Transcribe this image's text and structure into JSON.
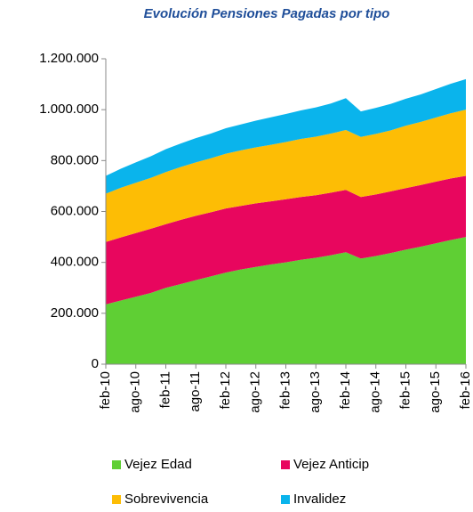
{
  "chart_data": {
    "type": "stacked_area",
    "title": "Evolución Pensiones Pagadas por tipo",
    "categories": [
      "feb-10",
      null,
      "ago-10",
      null,
      "feb-11",
      null,
      "ago-11",
      null,
      "feb-12",
      null,
      "ago-12",
      null,
      "feb-13",
      null,
      "ago-13",
      null,
      "feb-14",
      null,
      "ago-14",
      null,
      "feb-15",
      null,
      "ago-15",
      null,
      "feb-16"
    ],
    "series": [
      {
        "name": "Vejez Edad",
        "color": "#5fcf34",
        "values": [
          235000,
          250000,
          265000,
          280000,
          300000,
          315000,
          330000,
          345000,
          360000,
          372000,
          382000,
          392000,
          400000,
          410000,
          418000,
          428000,
          440000,
          415000,
          425000,
          437000,
          450000,
          462000,
          475000,
          488000,
          500000
        ]
      },
      {
        "name": "Vejez Anticip",
        "color": "#e8065e",
        "values": [
          245000,
          248000,
          250000,
          252000,
          250000,
          252000,
          253000,
          252000,
          252000,
          250000,
          250000,
          248000,
          248000,
          247000,
          246000,
          246000,
          245000,
          242000,
          242000,
          242000,
          242000,
          242000,
          242000,
          242000,
          240000
        ]
      },
      {
        "name": "Sobrevivencia",
        "color": "#fdbd05",
        "values": [
          190000,
          195000,
          198000,
          200000,
          205000,
          208000,
          210000,
          212000,
          215000,
          218000,
          220000,
          222000,
          225000,
          228000,
          230000,
          232000,
          235000,
          236000,
          238000,
          240000,
          245000,
          248000,
          252000,
          256000,
          260000
        ]
      },
      {
        "name": "Invalidez",
        "color": "#0ab4ec",
        "values": [
          70000,
          75000,
          80000,
          85000,
          90000,
          92000,
          95000,
          97000,
          100000,
          102000,
          105000,
          108000,
          110000,
          112000,
          115000,
          118000,
          125000,
          100000,
          102000,
          104000,
          106000,
          108000,
          112000,
          116000,
          120000
        ]
      }
    ],
    "ylim": [
      0,
      1200000
    ],
    "yticks": [
      0,
      {
        "value": 200000,
        "label": "200.000"
      },
      {
        "value": 400000,
        "label": "400.000"
      },
      {
        "value": 600000,
        "label": "600.000"
      },
      {
        "value": 800000,
        "label": "800.000"
      },
      {
        "value": 1000000,
        "label": "1.000.000"
      },
      {
        "value": 1200000,
        "label": "1.200.000"
      }
    ],
    "grid": false
  }
}
